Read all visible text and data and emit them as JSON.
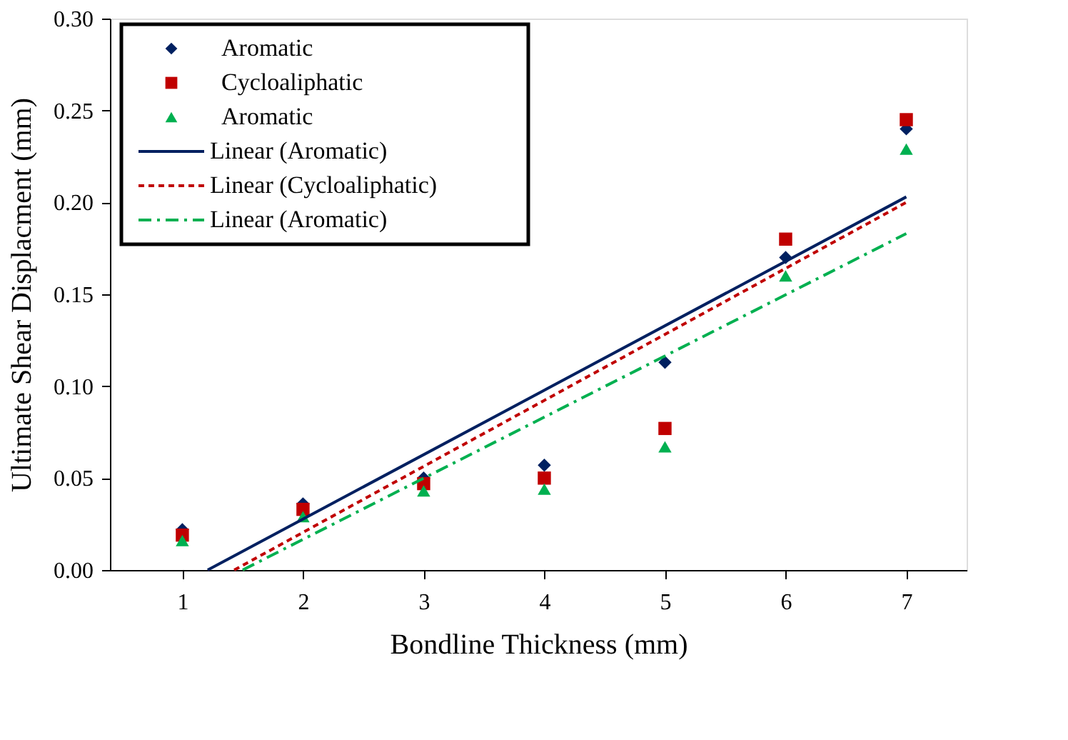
{
  "chart_data": {
    "type": "scatter",
    "xlabel": "Bondline Thickness (mm)",
    "ylabel": "Ultimate Shear Displacment (mm)",
    "x": [
      1,
      2,
      3,
      4,
      5,
      6,
      7
    ],
    "series": [
      {
        "name": "Aromatic",
        "marker": "diamond",
        "color": "#002060",
        "values": [
          0.022,
          0.036,
          0.05,
          0.057,
          0.113,
          0.17,
          0.24
        ]
      },
      {
        "name": "Cycloaliphatic",
        "marker": "square",
        "color": "#c00000",
        "values": [
          0.019,
          0.033,
          0.047,
          0.05,
          0.077,
          0.18,
          0.245
        ]
      },
      {
        "name": "Aromatic",
        "marker": "triangle",
        "color": "#00b050",
        "values": [
          0.016,
          0.029,
          0.043,
          0.044,
          0.067,
          0.16,
          0.229
        ]
      },
      {
        "name": "Linear (Aromatic)",
        "type": "line",
        "line_style": "solid",
        "color": "#002060",
        "x": [
          1.21,
          7
        ],
        "values": [
          0,
          0.203
        ]
      },
      {
        "name": "Linear (Cycloaliphatic)",
        "type": "line",
        "line_style": "dashed",
        "color": "#c00000",
        "x": [
          1.43,
          7
        ],
        "values": [
          0,
          0.2
        ]
      },
      {
        "name": "Linear (Aromatic)",
        "type": "line",
        "line_style": "dashdot",
        "color": "#00b050",
        "x": [
          1.5,
          7
        ],
        "values": [
          0,
          0.183
        ]
      }
    ],
    "xlim": [
      0.4,
      7.5
    ],
    "xticks": [
      1,
      2,
      3,
      4,
      5,
      6,
      7
    ],
    "ylim": [
      0,
      0.3
    ],
    "yticks": [
      {
        "value": 0,
        "label": "0.00"
      },
      0.05,
      {
        "value": 0.1,
        "label": "0.10"
      },
      0.15,
      {
        "value": 0.2,
        "label": "0.20"
      },
      0.25,
      {
        "value": 0.3,
        "label": "0.30"
      }
    ],
    "grid": false,
    "legend": "top left"
  }
}
